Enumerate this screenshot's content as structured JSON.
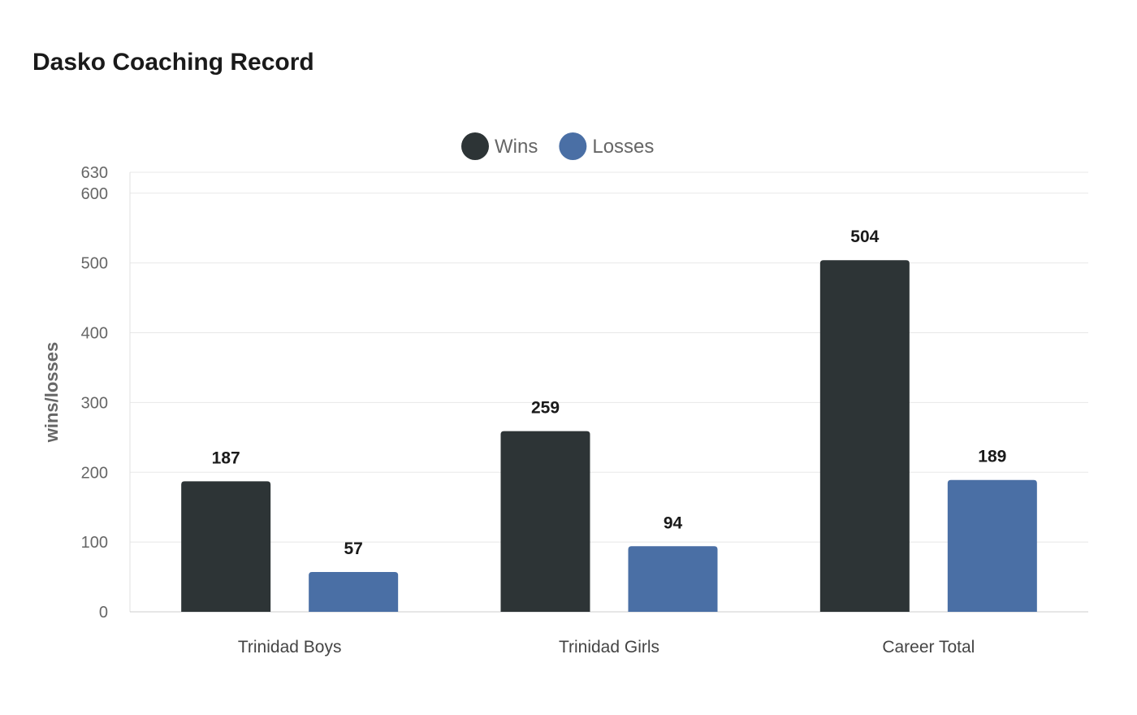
{
  "chart_data": {
    "type": "bar",
    "title": "Dasko Coaching Record",
    "xlabel": "",
    "ylabel": "wins/losses",
    "ylim": [
      0,
      630
    ],
    "yticks": [
      0,
      100,
      200,
      300,
      400,
      500,
      600,
      630
    ],
    "grid": true,
    "legend": "top",
    "categories": [
      "Trinidad Boys",
      "Trinidad Girls",
      "Career Total"
    ],
    "series": [
      {
        "name": "Wins",
        "color": "#2d3436",
        "values": [
          187,
          259,
          504
        ]
      },
      {
        "name": "Losses",
        "color": "#4a6fa5",
        "values": [
          57,
          94,
          189
        ]
      }
    ]
  }
}
